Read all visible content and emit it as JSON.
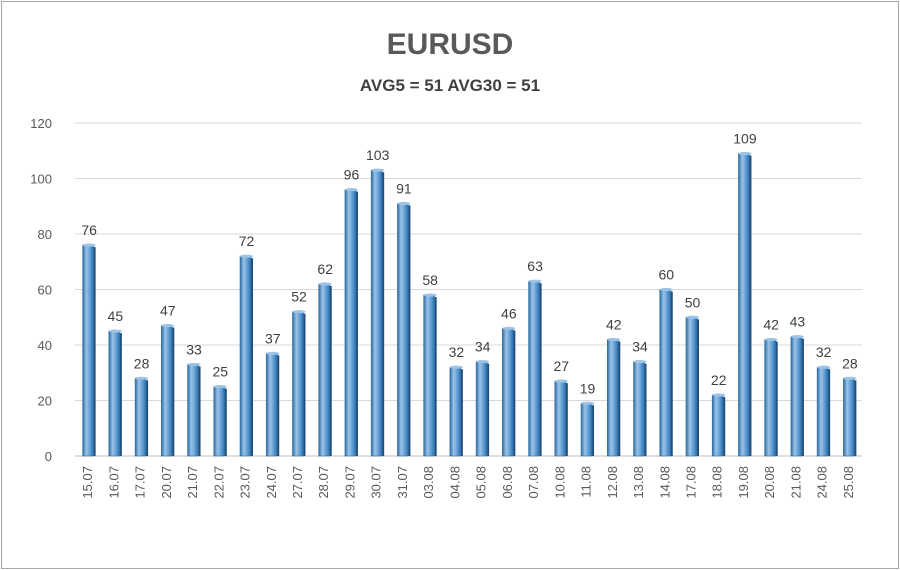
{
  "chart_data": {
    "type": "bar",
    "title": "EURUSD",
    "subtitle": "AVG5 = 51 AVG30 = 51",
    "categories": [
      "15.07",
      "16.07",
      "17.07",
      "20.07",
      "21.07",
      "22.07",
      "23.07",
      "24.07",
      "27.07",
      "28.07",
      "29.07",
      "30.07",
      "31.07",
      "03.08",
      "04.08",
      "05.08",
      "06.08",
      "07.08",
      "10.08",
      "11.08",
      "12.08",
      "13.08",
      "14.08",
      "17.08",
      "18.08",
      "19.08",
      "20.08",
      "21.08",
      "24.08",
      "25.08"
    ],
    "values": [
      76,
      45,
      28,
      47,
      33,
      25,
      72,
      37,
      52,
      62,
      96,
      103,
      91,
      58,
      32,
      34,
      46,
      63,
      27,
      19,
      42,
      34,
      60,
      50,
      22,
      109,
      42,
      43,
      32,
      28
    ],
    "ylim": [
      0,
      120
    ],
    "yticks": [
      0,
      20,
      40,
      60,
      80,
      100,
      120
    ],
    "grid": true,
    "legend": "none",
    "colors": {
      "bar": "#5b9bd5",
      "bar_dark": "#2e6da4",
      "bar_light": "#9dc3e6",
      "grid": "#d9d9d9"
    }
  }
}
